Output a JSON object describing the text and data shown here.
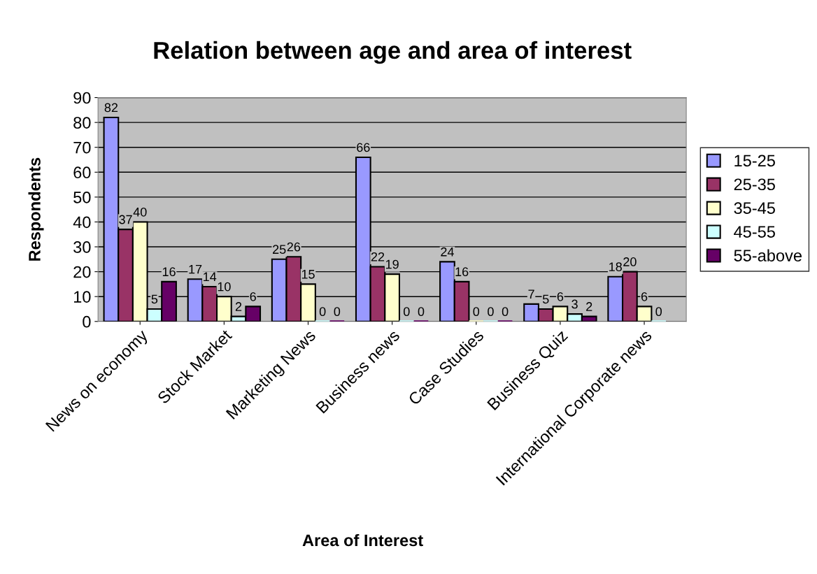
{
  "chart_data": {
    "type": "bar",
    "title": "Relation between age and area of interest",
    "xlabel": "Area of Interest",
    "ylabel": "Respondents",
    "categories": [
      "News on economy",
      "Stock Market",
      "Marketing News",
      "Business news",
      "Case Studies",
      "Business Quiz",
      "International Corporate news"
    ],
    "series": [
      {
        "name": "15-25",
        "color": "#9999ff",
        "values": [
          82,
          17,
          25,
          66,
          24,
          7,
          18
        ]
      },
      {
        "name": "25-35",
        "color": "#993366",
        "values": [
          37,
          14,
          26,
          22,
          16,
          5,
          20
        ]
      },
      {
        "name": "35-45",
        "color": "#ffffcc",
        "values": [
          40,
          10,
          15,
          19,
          0,
          6,
          6
        ]
      },
      {
        "name": "45-55",
        "color": "#ccffff",
        "values": [
          5,
          2,
          0,
          0,
          0,
          3,
          0
        ]
      },
      {
        "name": "55-above",
        "color": "#660066",
        "values": [
          16,
          6,
          0,
          0,
          0,
          2,
          null
        ]
      }
    ],
    "ylim": [
      0,
      90
    ],
    "yticks": [
      0,
      10,
      20,
      30,
      40,
      50,
      60,
      70,
      80,
      90
    ],
    "grid": "y",
    "legend": "right",
    "data_labels": true
  }
}
